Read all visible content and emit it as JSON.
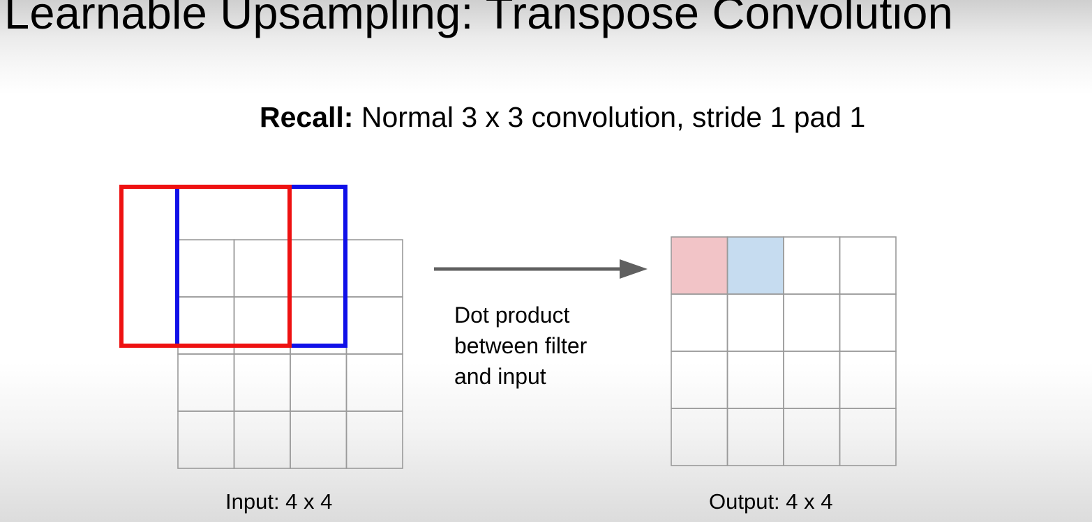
{
  "title": "Learnable Upsampling: Transpose Convolution",
  "subtitle": {
    "bold": "Recall:",
    "rest": " Normal 3 x 3 convolution, stride 1 pad 1"
  },
  "note_lines": [
    "Dot product",
    "between filter",
    "and input"
  ],
  "input_caption": "Input: 4 x 4",
  "output_caption": "Output: 4 x 4",
  "input_grid": {
    "rows": 4,
    "cols": 4
  },
  "output_grid": {
    "rows": 4,
    "cols": 4,
    "highlighted_cells": [
      {
        "row": 0,
        "col": 0,
        "color": "#f2c4c7"
      },
      {
        "row": 0,
        "col": 1,
        "color": "#c6dcf0"
      }
    ]
  },
  "filter_windows": [
    {
      "name": "first-filter-position",
      "color": "#ee1111"
    },
    {
      "name": "second-filter-position",
      "color": "#1010e8"
    }
  ],
  "arrow_color": "#606060",
  "grid_line_color": "#9a9a9a"
}
